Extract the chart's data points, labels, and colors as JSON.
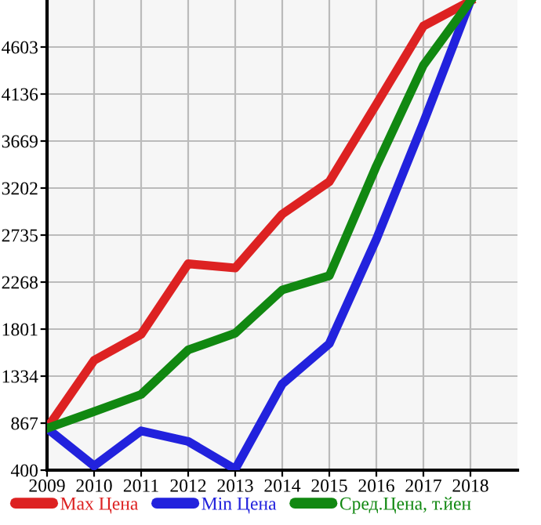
{
  "chart_data": {
    "type": "line",
    "x": [
      2009,
      2010,
      2011,
      2012,
      2013,
      2014,
      2015,
      2016,
      2017,
      2018
    ],
    "series": [
      {
        "name": "Max Цена",
        "color": "#dd2222",
        "values": [
          816,
          1490,
          1750,
          2450,
          2408,
          2943,
          3265,
          4033,
          4811,
          5060
        ]
      },
      {
        "name": "Min Цена",
        "color": "#2222dd",
        "values": [
          816,
          442,
          790,
          685,
          410,
          1256,
          1656,
          2693,
          3851,
          5060
        ]
      },
      {
        "name": "Сред.Цена, т.йен",
        "color": "#118811",
        "values": [
          816,
          981,
          1152,
          1594,
          1760,
          2190,
          2331,
          3420,
          4422,
          5060
        ]
      }
    ],
    "xlim": [
      2009,
      2019
    ],
    "xticks": [
      2009,
      2010,
      2011,
      2012,
      2013,
      2014,
      2015,
      2016,
      2017,
      2018
    ],
    "ylim": [
      400,
      5070
    ],
    "yticks": [
      400,
      867,
      1334,
      1801,
      2268,
      2735,
      3202,
      3669,
      4136,
      4603
    ],
    "grid": true,
    "legend": "bottom",
    "marker": "none",
    "line_style": "solid"
  }
}
